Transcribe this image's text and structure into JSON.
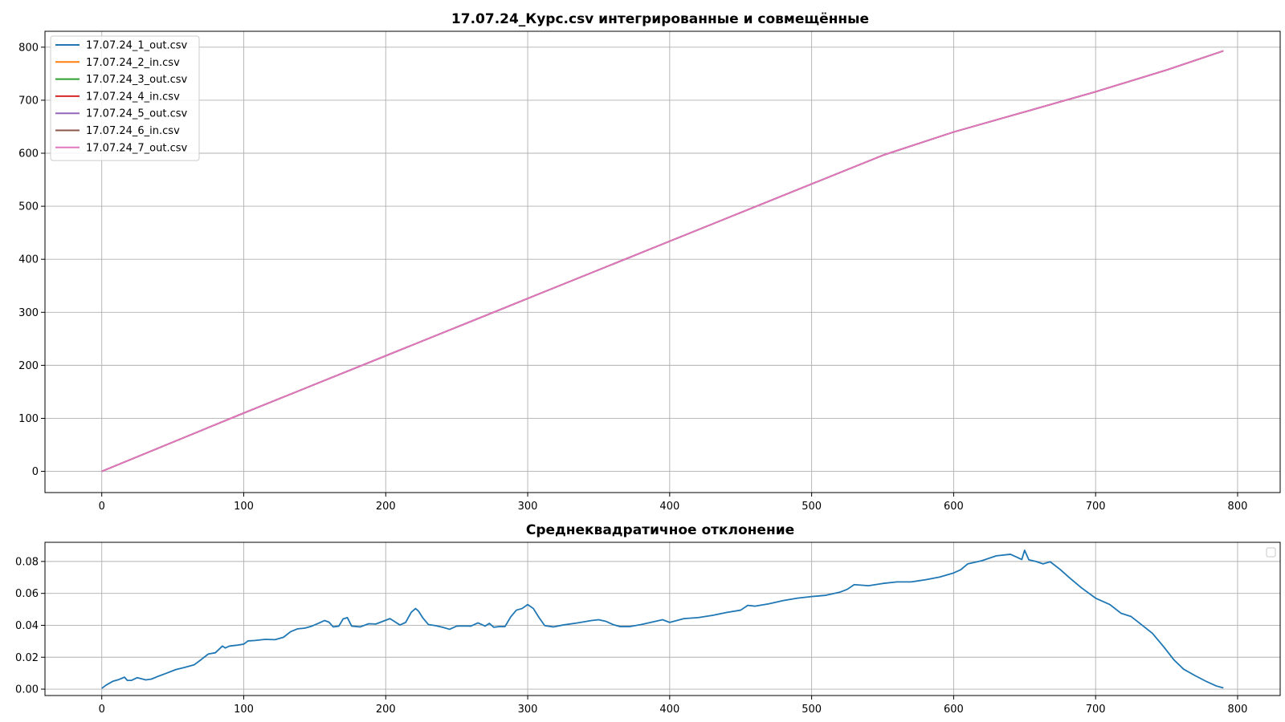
{
  "chart_data": [
    {
      "type": "line",
      "title": "17.07.24_Курс.csv интегрированные и совмещённые",
      "xlabel": "",
      "ylabel": "",
      "xlim": [
        -40,
        830
      ],
      "ylim": [
        -40,
        830
      ],
      "xticks": [
        0,
        100,
        200,
        300,
        400,
        500,
        600,
        700,
        800
      ],
      "yticks": [
        0,
        100,
        200,
        300,
        400,
        500,
        600,
        700,
        800
      ],
      "grid": true,
      "legend": "upper-left",
      "series": [
        {
          "name": "17.07.24_1_out.csv",
          "color": "#1f77b4",
          "x": [
            0,
            100,
            200,
            300,
            400,
            500,
            550,
            600,
            650,
            700,
            750,
            790
          ],
          "y": [
            0,
            110,
            218,
            326,
            434,
            542,
            596,
            640,
            678,
            716,
            757,
            793
          ]
        },
        {
          "name": "17.07.24_2_in.csv",
          "color": "#ff7f0e",
          "x": [
            0,
            100,
            200,
            300,
            400,
            500,
            550,
            600,
            650,
            700,
            750,
            790
          ],
          "y": [
            0,
            110,
            218,
            326,
            434,
            542,
            596,
            640,
            678,
            716,
            757,
            793
          ]
        },
        {
          "name": "17.07.24_3_out.csv",
          "color": "#2ca02c",
          "x": [
            0,
            100,
            200,
            300,
            400,
            500,
            550,
            600,
            650,
            700,
            750,
            790
          ],
          "y": [
            0,
            110,
            218,
            326,
            434,
            542,
            596,
            640,
            678,
            716,
            757,
            793
          ]
        },
        {
          "name": "17.07.24_4_in.csv",
          "color": "#d62728",
          "x": [
            0,
            100,
            200,
            300,
            400,
            500,
            550,
            600,
            650,
            700,
            750,
            790
          ],
          "y": [
            0,
            110,
            218,
            326,
            434,
            542,
            596,
            640,
            678,
            716,
            757,
            793
          ]
        },
        {
          "name": "17.07.24_5_out.csv",
          "color": "#9467bd",
          "x": [
            0,
            100,
            200,
            300,
            400,
            500,
            550,
            600,
            650,
            700,
            750,
            790
          ],
          "y": [
            0,
            110,
            218,
            326,
            434,
            542,
            596,
            640,
            678,
            716,
            757,
            793
          ]
        },
        {
          "name": "17.07.24_6_in.csv",
          "color": "#8c564b",
          "x": [
            0,
            100,
            200,
            300,
            400,
            500,
            550,
            600,
            650,
            700,
            750,
            790
          ],
          "y": [
            0,
            110,
            218,
            326,
            434,
            542,
            596,
            640,
            678,
            716,
            757,
            793
          ]
        },
        {
          "name": "17.07.24_7_out.csv",
          "color": "#e377c2",
          "x": [
            0,
            100,
            200,
            300,
            400,
            500,
            550,
            600,
            650,
            700,
            750,
            790
          ],
          "y": [
            0,
            110,
            218,
            326,
            434,
            542,
            596,
            640,
            678,
            716,
            757,
            793
          ]
        }
      ]
    },
    {
      "type": "line",
      "title": "Среднеквадратичное отклонение",
      "xlabel": "",
      "ylabel": "",
      "xlim": [
        -40,
        830
      ],
      "ylim": [
        -0.004,
        0.092
      ],
      "xticks": [
        0,
        100,
        200,
        300,
        400,
        500,
        600,
        700,
        800
      ],
      "yticks": [
        0.0,
        0.02,
        0.04,
        0.06,
        0.08
      ],
      "yticklabels": [
        "0.00",
        "0.02",
        "0.04",
        "0.06",
        "0.08"
      ],
      "grid": true,
      "legend": "upper-right (empty)",
      "series": [
        {
          "color": "#1f77b4",
          "x": [
            0,
            3,
            8,
            12,
            16,
            18,
            21,
            25,
            28,
            31,
            35,
            39,
            45,
            52,
            58,
            65,
            70,
            75,
            80,
            85,
            87,
            90,
            95,
            100,
            103,
            108,
            115,
            122,
            128,
            133,
            138,
            143,
            148,
            152,
            157,
            160,
            163,
            167,
            170,
            173,
            176,
            182,
            188,
            193,
            198,
            203,
            206,
            210,
            214,
            218,
            221,
            223,
            226,
            230,
            235,
            240,
            245,
            250,
            255,
            260,
            265,
            270,
            273,
            276,
            280,
            284,
            288,
            292,
            296,
            300,
            304,
            308,
            312,
            318,
            325,
            335,
            345,
            350,
            355,
            360,
            365,
            372,
            380,
            390,
            395,
            400,
            405,
            410,
            420,
            430,
            440,
            450,
            455,
            460,
            470,
            480,
            490,
            500,
            510,
            520,
            525,
            530,
            540,
            550,
            560,
            570,
            580,
            590,
            600,
            605,
            610,
            620,
            630,
            640,
            645,
            648,
            650,
            653,
            658,
            663,
            668,
            675,
            682,
            690,
            700,
            710,
            718,
            725,
            730,
            740,
            748,
            755,
            762,
            770,
            778,
            785,
            790
          ],
          "y": [
            0.0005,
            0.0025,
            0.005,
            0.006,
            0.0075,
            0.0055,
            0.0055,
            0.0072,
            0.0065,
            0.0058,
            0.0063,
            0.0078,
            0.0098,
            0.0122,
            0.0135,
            0.0152,
            0.0185,
            0.022,
            0.0228,
            0.027,
            0.0258,
            0.027,
            0.0275,
            0.0282,
            0.0302,
            0.0305,
            0.0312,
            0.031,
            0.0325,
            0.036,
            0.0378,
            0.0382,
            0.0395,
            0.041,
            0.043,
            0.042,
            0.039,
            0.0395,
            0.044,
            0.0448,
            0.0395,
            0.039,
            0.041,
            0.0408,
            0.0425,
            0.0442,
            0.0425,
            0.0402,
            0.0418,
            0.0482,
            0.0505,
            0.049,
            0.0448,
            0.0405,
            0.0398,
            0.0388,
            0.0375,
            0.0395,
            0.0396,
            0.0395,
            0.0415,
            0.0395,
            0.0412,
            0.0388,
            0.0392,
            0.0392,
            0.0452,
            0.0495,
            0.0505,
            0.053,
            0.0505,
            0.0448,
            0.0398,
            0.039,
            0.0402,
            0.0415,
            0.043,
            0.0435,
            0.0425,
            0.0405,
            0.0392,
            0.0392,
            0.0405,
            0.0425,
            0.0435,
            0.0418,
            0.043,
            0.0442,
            0.0448,
            0.0462,
            0.048,
            0.0495,
            0.0525,
            0.052,
            0.0535,
            0.0555,
            0.057,
            0.058,
            0.0588,
            0.0608,
            0.0625,
            0.0655,
            0.0648,
            0.0662,
            0.0672,
            0.0672,
            0.0685,
            0.0702,
            0.0728,
            0.0748,
            0.0785,
            0.0805,
            0.0835,
            0.0845,
            0.0825,
            0.0812,
            0.087,
            0.081,
            0.08,
            0.0785,
            0.0798,
            0.075,
            0.0695,
            0.0635,
            0.057,
            0.053,
            0.0475,
            0.0455,
            0.042,
            0.035,
            0.0265,
            0.0185,
            0.0125,
            0.0085,
            0.0048,
            0.002,
            0.0008
          ]
        }
      ]
    }
  ]
}
